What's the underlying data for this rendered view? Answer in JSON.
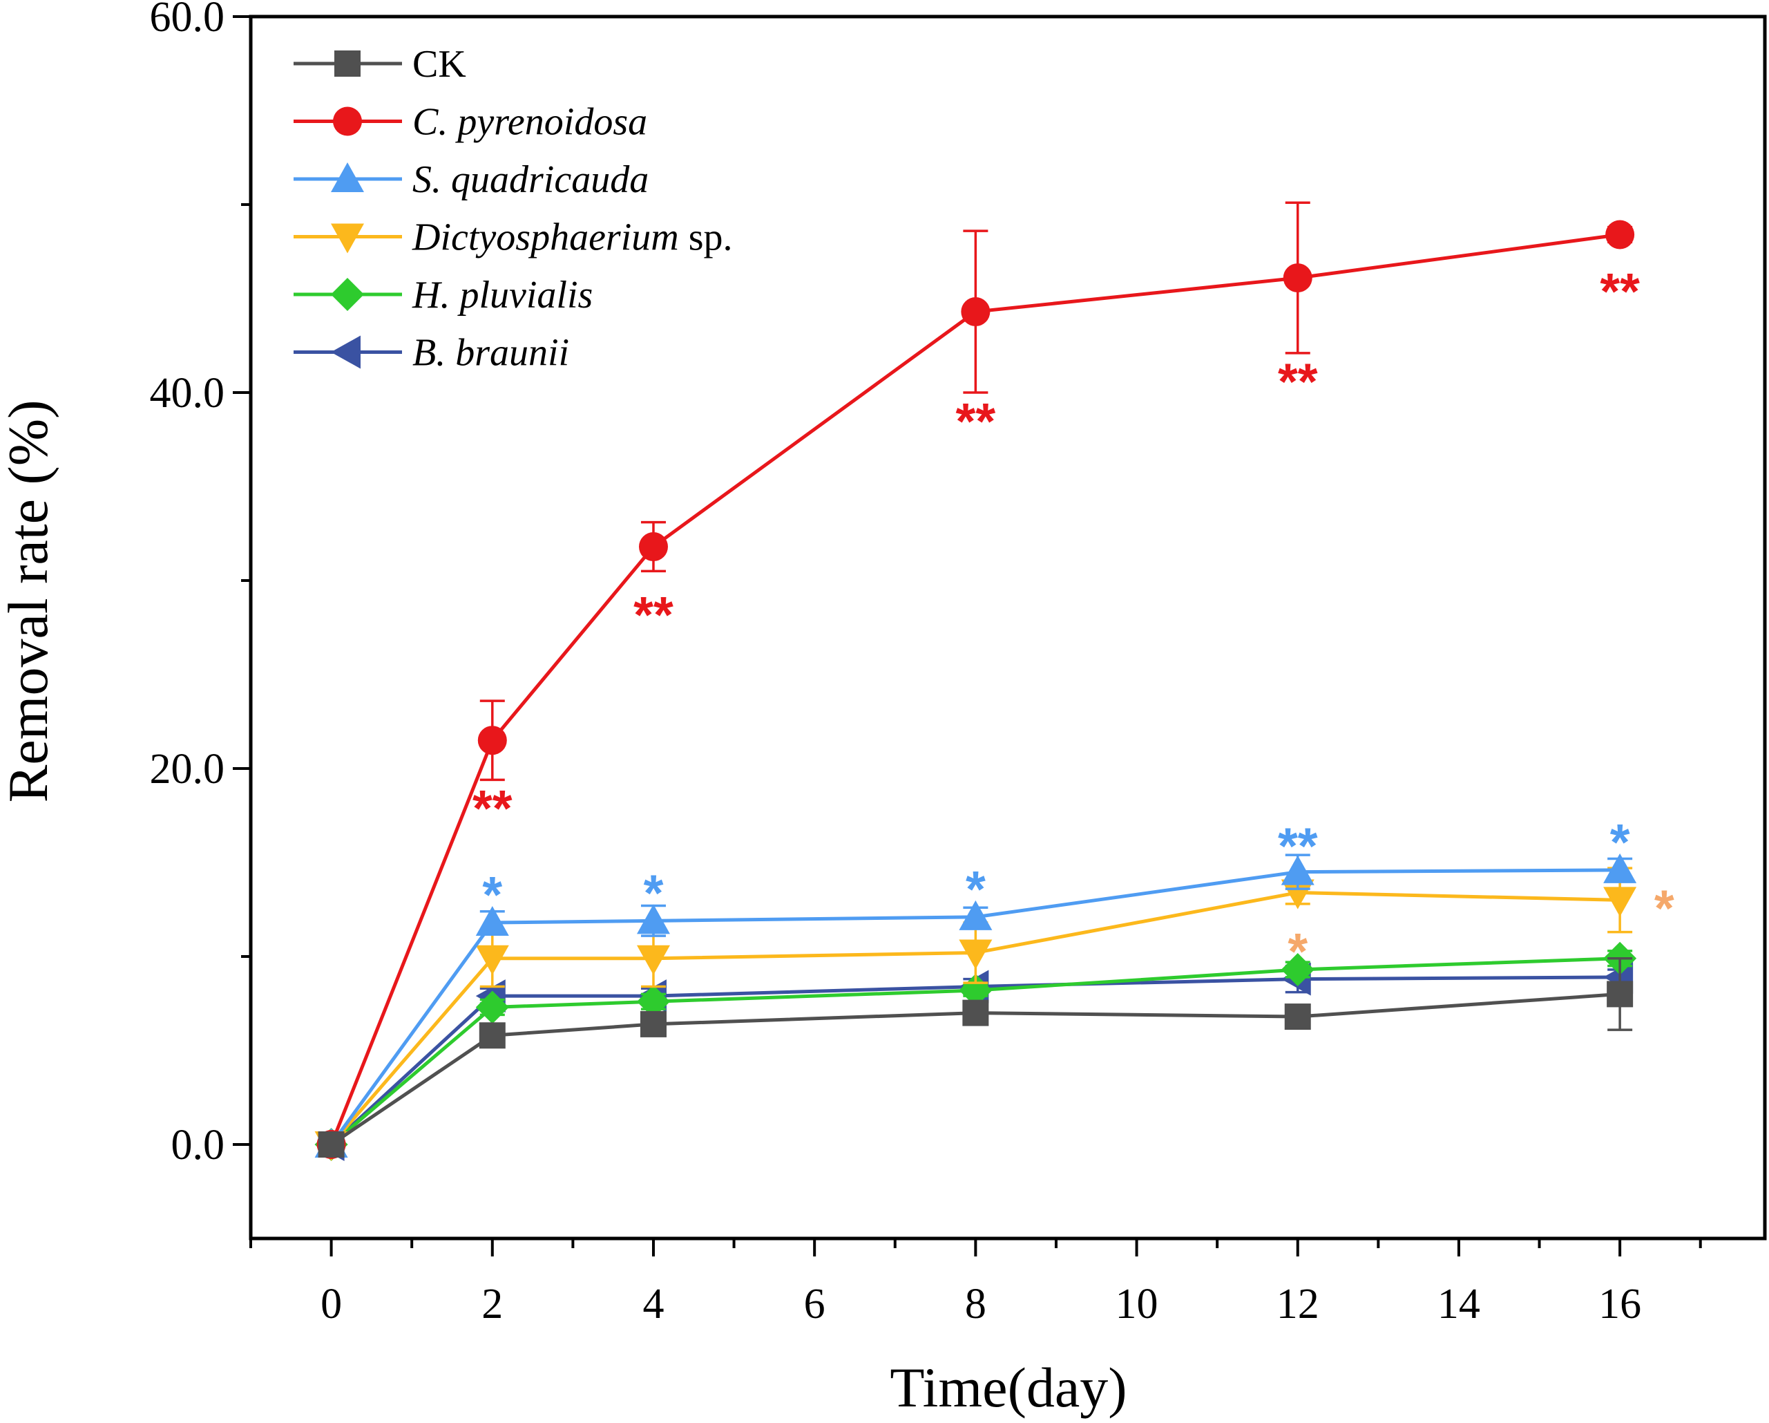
{
  "chart_data": {
    "type": "line",
    "title": "",
    "xlabel": "Time(day)",
    "ylabel": "Removal rate (%)",
    "xlim": [
      -1,
      17.8
    ],
    "ylim": [
      -5,
      60
    ],
    "x_major_ticks": [
      0,
      2,
      4,
      6,
      8,
      10,
      12,
      14,
      16
    ],
    "x_tick_labels": [
      "0",
      "2",
      "4",
      "6",
      "8",
      "10",
      "12",
      "14",
      "16"
    ],
    "x_minor_ticks": [
      -1,
      1,
      3,
      5,
      7,
      9,
      11,
      13,
      15,
      17
    ],
    "y_major_ticks": [
      0,
      20,
      40,
      60
    ],
    "y_tick_labels": [
      "0.0",
      "20.0",
      "40.0",
      "60.0"
    ],
    "y_minor_ticks": [
      10,
      30,
      50
    ],
    "x": [
      0,
      2,
      4,
      8,
      12,
      16
    ],
    "legend_position": "top-left",
    "series": [
      {
        "name": "CK",
        "italic": false,
        "suffix": "",
        "color": "#505050",
        "marker": "square",
        "values": [
          0,
          5.8,
          6.4,
          7.0,
          6.8,
          8.0
        ],
        "errors": [
          0,
          0.3,
          0.4,
          0.3,
          0.5,
          1.9
        ]
      },
      {
        "name": "C. pyrenoidosa",
        "italic": true,
        "suffix": "",
        "color": "#e8171b",
        "marker": "circle",
        "values": [
          0,
          21.5,
          31.8,
          44.3,
          46.1,
          48.4
        ],
        "errors": [
          0,
          2.1,
          1.3,
          4.3,
          4.0,
          0.4
        ]
      },
      {
        "name": "S. quadricauda",
        "italic": true,
        "suffix": "",
        "color": "#4f9cf2",
        "marker": "triangle-up",
        "values": [
          0,
          11.8,
          11.9,
          12.1,
          14.5,
          14.6
        ],
        "errors": [
          0,
          0.6,
          0.8,
          0.5,
          0.9,
          0.6
        ]
      },
      {
        "name": "Dictyosphaerium",
        "italic": true,
        "suffix": " sp.",
        "color": "#fcb81c",
        "marker": "triangle-down",
        "values": [
          0,
          9.9,
          9.9,
          10.2,
          13.4,
          13.0
        ],
        "errors": [
          0,
          1.5,
          1.5,
          1.6,
          0.6,
          1.7
        ]
      },
      {
        "name": "H. pluvialis",
        "italic": true,
        "suffix": "",
        "color": "#2ecb2e",
        "marker": "diamond",
        "values": [
          0,
          7.3,
          7.6,
          8.2,
          9.3,
          9.9
        ],
        "errors": [
          0,
          0.4,
          0.4,
          0.3,
          0.4,
          0.4
        ]
      },
      {
        "name": "B. braunii",
        "italic": true,
        "suffix": "",
        "color": "#3a52a2",
        "marker": "triangle-left",
        "values": [
          0,
          7.9,
          7.9,
          8.4,
          8.8,
          8.9
        ],
        "errors": [
          0,
          0.4,
          0.4,
          0.4,
          0.7,
          0.4
        ]
      }
    ],
    "annotations": [
      {
        "x": 2,
        "y": 17.9,
        "text": "**",
        "color": "#e8171b"
      },
      {
        "x": 4,
        "y": 28.2,
        "text": "**",
        "color": "#e8171b"
      },
      {
        "x": 8,
        "y": 38.5,
        "text": "**",
        "color": "#e8171b"
      },
      {
        "x": 12,
        "y": 40.6,
        "text": "**",
        "color": "#e8171b"
      },
      {
        "x": 16,
        "y": 45.4,
        "text": "**",
        "color": "#e8171b"
      },
      {
        "x": 2,
        "y": 13.3,
        "text": "*",
        "color": "#4f9cf2"
      },
      {
        "x": 4,
        "y": 13.4,
        "text": "*",
        "color": "#4f9cf2"
      },
      {
        "x": 8,
        "y": 13.6,
        "text": "*",
        "color": "#4f9cf2"
      },
      {
        "x": 12,
        "y": 15.9,
        "text": "**",
        "color": "#4f9cf2"
      },
      {
        "x": 16,
        "y": 16.1,
        "text": "*",
        "color": "#4f9cf2"
      },
      {
        "x": 12,
        "y": 10.3,
        "text": "*",
        "color": "#f5a86a"
      },
      {
        "x": 16.55,
        "y": 12.6,
        "text": "*",
        "color": "#f5a86a"
      }
    ]
  }
}
